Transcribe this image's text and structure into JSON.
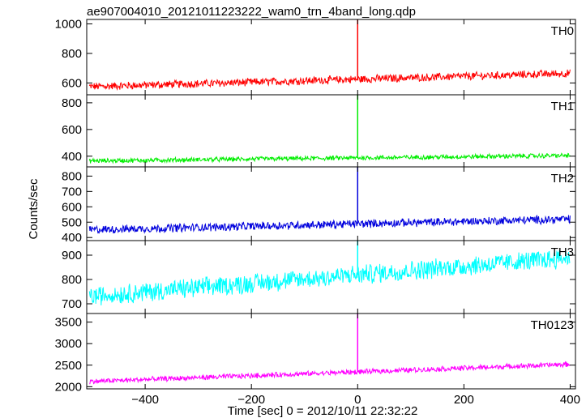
{
  "chart_data": {
    "type": "line",
    "title": "ae907004010_20121011223222_wam0_trn_4band_long.qdp",
    "xlabel": "Time [sec] 0 = 2012/10/11 22:32:22",
    "ylabel": "Counts/sec",
    "xlim": [
      -510,
      410
    ],
    "xticks": [
      -400,
      -200,
      0,
      200,
      400
    ],
    "grid": false,
    "legend": "none",
    "panels": [
      {
        "name": "TH0",
        "color": "#ff0000",
        "ylim": [
          520,
          1030
        ],
        "yticks": [
          600,
          800,
          1000
        ],
        "trend_start": 575,
        "trend_end": 665,
        "noise": 20,
        "spike": 1030
      },
      {
        "name": "TH1",
        "color": "#00ee00",
        "ylim": [
          320,
          860
        ],
        "yticks": [
          400,
          600,
          800
        ],
        "trend_start": 365,
        "trend_end": 405,
        "noise": 13,
        "spike": 860
      },
      {
        "name": "TH2",
        "color": "#0000dd",
        "ylim": [
          380,
          860
        ],
        "yticks": [
          400,
          500,
          600,
          700,
          800
        ],
        "trend_start": 450,
        "trend_end": 520,
        "noise": 20,
        "spike": 860
      },
      {
        "name": "TH3",
        "color": "#00ffff",
        "ylim": [
          660,
          960
        ],
        "yticks": [
          700,
          800,
          900
        ],
        "trend_start": 730,
        "trend_end": 890,
        "noise": 30,
        "spike": 960
      },
      {
        "name": "TH0123",
        "color": "#ff00ff",
        "ylim": [
          1950,
          3700
        ],
        "yticks": [
          2000,
          2500,
          3000,
          3500
        ],
        "trend_start": 2120,
        "trend_end": 2520,
        "noise": 45,
        "spike": 3700
      }
    ]
  }
}
